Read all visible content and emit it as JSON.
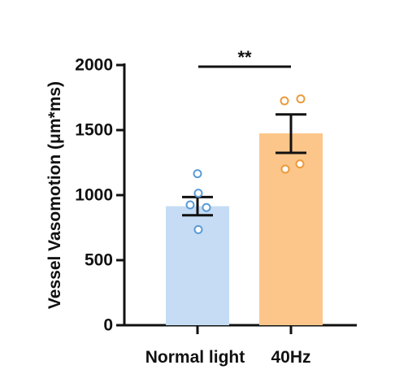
{
  "chart_data": {
    "type": "bar",
    "ylabel": "Vessel Vasomotion (μm*ms)",
    "xlabel": "",
    "ylim": [
      0,
      2000
    ],
    "yticks": [
      0,
      500,
      1000,
      1500,
      2000
    ],
    "ytick_labels": [
      "0",
      "500",
      "1000",
      "1500",
      "2000"
    ],
    "categories": [
      "Normal light",
      "40Hz"
    ],
    "values": [
      915,
      1475
    ],
    "error_bars": [
      {
        "low": 845,
        "high": 985
      },
      {
        "low": 1325,
        "high": 1620
      }
    ],
    "points": [
      [
        1165,
        1015,
        925,
        905,
        735
      ],
      [
        1725,
        1740,
        1200,
        1240
      ]
    ],
    "significance": {
      "label": "**",
      "between": [
        "Normal light",
        "40Hz"
      ]
    },
    "colors": {
      "bar_fill": [
        "#c6dcf4",
        "#fcc68a"
      ],
      "point_edge": [
        "#5b9bd5",
        "#eb9a3a"
      ],
      "axis": "#111111"
    },
    "grid": false
  }
}
